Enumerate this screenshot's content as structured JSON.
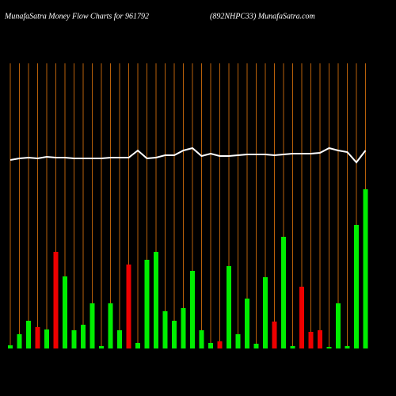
{
  "chart_data": {
    "type": "bar",
    "title": "MunafaSatra  Money Flow  Charts for 961792",
    "subtitle": "(892NHPC33) MunafaSatra.com",
    "categories": [
      null,
      null,
      null,
      null,
      null,
      null,
      null,
      null,
      null,
      null,
      null,
      null,
      null,
      null,
      null,
      null,
      null,
      null,
      null,
      null,
      null,
      null,
      null,
      null,
      null,
      null,
      null,
      null,
      null,
      null,
      null,
      null,
      null,
      null,
      null,
      null,
      null,
      null,
      null,
      null
    ],
    "ylim": [
      0,
      360
    ],
    "grid_color": "#b8600a",
    "series": [
      {
        "type": "bar",
        "values": [
          4,
          18,
          35,
          27,
          24,
          122,
          91,
          23,
          30,
          57,
          3,
          57,
          23,
          106,
          7,
          112,
          122,
          47,
          35,
          51,
          98,
          23,
          7,
          9,
          104,
          18,
          63,
          6,
          90,
          34,
          141,
          3,
          78,
          21,
          23,
          2,
          57,
          3,
          156,
          201
        ],
        "colors": [
          "#00ee00",
          "#00ee00",
          "#00ee00",
          "#ee0000",
          "#00ee00",
          "#ee0000",
          "#00ee00",
          "#00ee00",
          "#00ee00",
          "#00ee00",
          "#00ee00",
          "#00ee00",
          "#00ee00",
          "#ee0000",
          "#00ee00",
          "#00ee00",
          "#00ee00",
          "#00ee00",
          "#00ee00",
          "#00ee00",
          "#00ee00",
          "#00ee00",
          "#00ee00",
          "#ee0000",
          "#00ee00",
          "#00ee00",
          "#00ee00",
          "#00ee00",
          "#00ee00",
          "#ee0000",
          "#00ee00",
          "#00ee00",
          "#ee0000",
          "#ee0000",
          "#ee0000",
          "#00ee00",
          "#00ee00",
          "#00ee00",
          "#00ee00",
          "#00ee00"
        ]
      },
      {
        "type": "line",
        "color": "#ffffff",
        "values": [
          238,
          240,
          241,
          240,
          242,
          241,
          241,
          240,
          240,
          240,
          240,
          241,
          241,
          241,
          250,
          240,
          241,
          244,
          244,
          250,
          253,
          243,
          246,
          243,
          243,
          244,
          245,
          245,
          245,
          244,
          245,
          246,
          246,
          246,
          247,
          253,
          250,
          248,
          235,
          250
        ]
      }
    ]
  }
}
